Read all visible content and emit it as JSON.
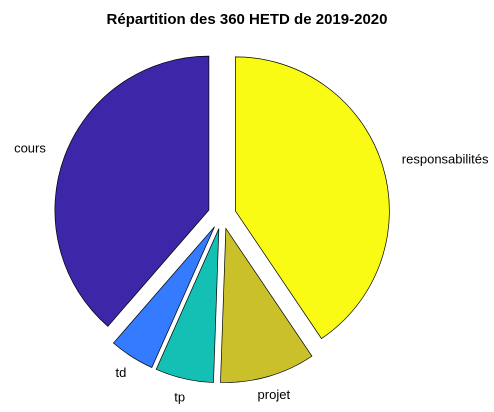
{
  "chart_data": {
    "type": "pie",
    "title": "Répartition des 360 HETD de 2019-2020",
    "categories": [
      "cours",
      "td",
      "tp",
      "projet",
      "responsabilités"
    ],
    "values": [
      139,
      17,
      22,
      36,
      146
    ],
    "colors": [
      "#3e26a8",
      "#347bff",
      "#14c0b4",
      "#c9c02a",
      "#f9fb15"
    ],
    "explode": true
  }
}
